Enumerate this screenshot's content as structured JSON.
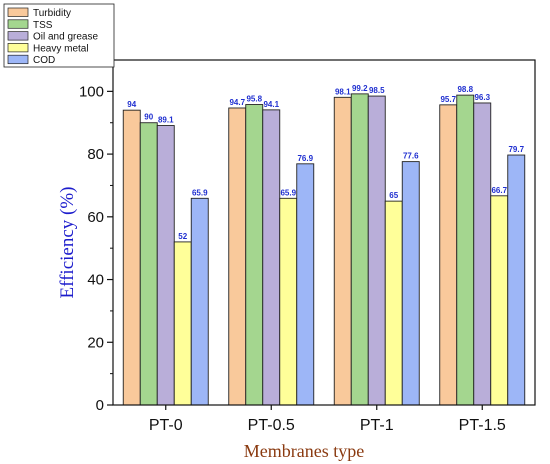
{
  "chart_data": {
    "type": "bar",
    "xlabel": "Membranes type",
    "ylabel": "Efficiency (%)",
    "ylim": [
      0,
      110
    ],
    "yticks": [
      0,
      20,
      40,
      60,
      80,
      100
    ],
    "categories": [
      "PT-0",
      "PT-0.5",
      "PT-1",
      "PT-1.5"
    ],
    "series": [
      {
        "name": "Turbidity",
        "color": "#f9c99b",
        "values": [
          94,
          94.7,
          98.1,
          95.7
        ]
      },
      {
        "name": "TSS",
        "color": "#a4d68f",
        "values": [
          90,
          95.8,
          99.2,
          98.8
        ]
      },
      {
        "name": "Oil and grease",
        "color": "#b9aed9",
        "values": [
          89.1,
          94.1,
          98.5,
          96.3
        ]
      },
      {
        "name": "Heavy metal",
        "color": "#ffff99",
        "values": [
          52,
          65.9,
          65,
          66.7
        ]
      },
      {
        "name": "COD",
        "color": "#9db6f7",
        "values": [
          65.9,
          76.9,
          77.6,
          79.7
        ]
      }
    ],
    "legend_position": "top-left",
    "grid": false,
    "data_label_color": "#1f2fd0"
  }
}
